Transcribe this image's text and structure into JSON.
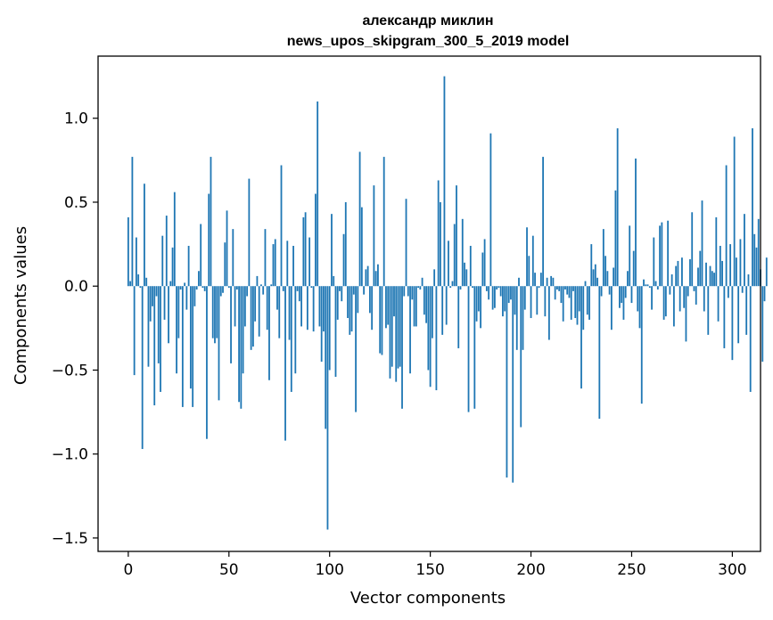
{
  "chart_data": {
    "type": "bar",
    "title_lines": [
      "александр миклин",
      "news_upos_skipgram_300_5_2019 model"
    ],
    "xlabel": "Vector components",
    "ylabel": "Components values",
    "xlim": [
      -15,
      314
    ],
    "ylim": [
      -1.58,
      1.37
    ],
    "xticks": [
      0,
      50,
      100,
      150,
      200,
      250,
      300
    ],
    "xtick_labels": [
      "0",
      "50",
      "100",
      "150",
      "200",
      "250",
      "300"
    ],
    "yticks": [
      -1.5,
      -1.0,
      -0.5,
      0.0,
      0.5,
      1.0
    ],
    "ytick_labels": [
      "−1.5",
      "−1.0",
      "−0.5",
      "0.0",
      "0.5",
      "1.0"
    ],
    "grid": false,
    "bar_color": "#1f77b4",
    "values": [
      0.41,
      0.03,
      0.77,
      -0.53,
      0.29,
      0.07,
      -0.01,
      -0.97,
      0.61,
      0.05,
      -0.48,
      -0.21,
      -0.12,
      -0.71,
      -0.06,
      -0.46,
      -0.63,
      0.3,
      -0.2,
      0.42,
      -0.34,
      0.03,
      0.23,
      0.56,
      -0.52,
      -0.31,
      -0.02,
      -0.72,
      0.02,
      -0.14,
      0.24,
      -0.61,
      -0.72,
      -0.12,
      -0.02,
      0.09,
      0.37,
      -0.01,
      -0.03,
      -0.91,
      0.55,
      0.77,
      -0.31,
      -0.34,
      -0.31,
      -0.68,
      -0.06,
      -0.04,
      0.26,
      0.45,
      -0.01,
      -0.46,
      0.34,
      -0.24,
      -0.02,
      -0.69,
      -0.73,
      -0.52,
      -0.24,
      -0.06,
      0.64,
      -0.38,
      -0.36,
      -0.21,
      0.06,
      -0.3,
      0.01,
      -0.05,
      0.34,
      -0.26,
      -0.56,
      0.01,
      0.25,
      0.28,
      -0.14,
      -0.31,
      0.72,
      -0.03,
      -0.92,
      0.27,
      -0.32,
      -0.63,
      0.24,
      -0.52,
      -0.03,
      -0.09,
      -0.24,
      0.41,
      0.44,
      -0.26,
      0.29,
      -0.01,
      -0.27,
      0.55,
      1.1,
      -0.24,
      -0.45,
      -0.27,
      -0.85,
      -1.45,
      -0.5,
      0.43,
      0.06,
      -0.54,
      -0.2,
      -0.03,
      -0.09,
      0.31,
      0.5,
      -0.19,
      -0.29,
      -0.27,
      -0.05,
      -0.75,
      -0.16,
      0.8,
      0.47,
      -0.05,
      0.1,
      0.12,
      -0.16,
      -0.26,
      0.6,
      0.09,
      0.13,
      -0.4,
      -0.41,
      0.77,
      -0.25,
      -0.23,
      -0.55,
      -0.48,
      -0.18,
      -0.57,
      -0.49,
      -0.48,
      -0.73,
      -0.06,
      0.52,
      -0.06,
      -0.52,
      -0.08,
      -0.24,
      -0.24,
      -0.01,
      -0.02,
      0.05,
      -0.17,
      -0.22,
      -0.5,
      -0.6,
      -0.31,
      0.1,
      -0.62,
      0.63,
      0.5,
      -0.29,
      1.25,
      -0.23,
      0.27,
      -0.01,
      0.03,
      0.37,
      0.6,
      -0.37,
      -0.02,
      0.4,
      0.14,
      0.1,
      -0.75,
      0.24,
      -0.01,
      -0.73,
      -0.21,
      -0.15,
      -0.25,
      0.2,
      0.28,
      -0.03,
      -0.08,
      0.91,
      -0.14,
      -0.13,
      -0.02,
      -0.01,
      -0.06,
      -0.18,
      -0.15,
      -1.14,
      -0.1,
      -0.08,
      -1.17,
      -0.17,
      -0.38,
      0.05,
      -0.84,
      -0.38,
      -0.14,
      0.35,
      0.18,
      -0.19,
      0.3,
      0.08,
      -0.17,
      -0.01,
      0.08,
      0.77,
      -0.18,
      0.05,
      -0.32,
      0.06,
      0.05,
      -0.08,
      -0.02,
      -0.03,
      -0.1,
      -0.21,
      -0.02,
      -0.05,
      -0.07,
      -0.2,
      -0.03,
      -0.19,
      -0.23,
      -0.15,
      -0.61,
      -0.26,
      0.03,
      -0.17,
      -0.2,
      0.25,
      0.1,
      0.13,
      0.05,
      -0.79,
      -0.06,
      0.34,
      0.18,
      0.09,
      -0.05,
      -0.26,
      0.11,
      0.57,
      0.94,
      -0.13,
      -0.1,
      -0.2,
      -0.07,
      0.09,
      0.36,
      -0.1,
      0.21,
      0.76,
      -0.15,
      -0.25,
      -0.7,
      0.04,
      0.01,
      0.01,
      -0.01,
      -0.14,
      0.29,
      0.03,
      -0.02,
      0.36,
      0.38,
      -0.2,
      -0.18,
      0.39,
      -0.05,
      0.07,
      -0.24,
      0.12,
      0.15,
      -0.15,
      0.17,
      -0.13,
      -0.33,
      -0.06,
      0.16,
      0.44,
      -0.03,
      -0.11,
      0.11,
      0.21,
      0.51,
      -0.15,
      0.14,
      -0.29,
      0.12,
      0.09,
      0.08,
      0.41,
      -0.21,
      0.24,
      0.15,
      -0.37,
      0.72,
      -0.07,
      0.25,
      -0.44,
      0.89,
      0.17,
      -0.34,
      0.28,
      -0.04,
      0.43,
      -0.29,
      0.07,
      -0.63,
      0.94,
      0.31,
      0.23,
      0.4,
      0.1,
      -0.45,
      -0.09,
      0.17
    ],
    "series": []
  }
}
